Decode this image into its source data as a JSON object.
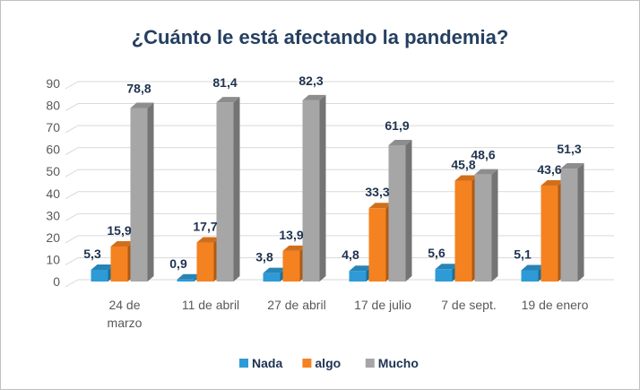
{
  "chart_data": {
    "type": "bar",
    "title": "¿Cuánto le está afectando la pandemia?",
    "xlabel": "",
    "ylabel": "",
    "ylim": [
      0,
      90
    ],
    "yticks": [
      0,
      10,
      20,
      30,
      40,
      50,
      60,
      70,
      80,
      90
    ],
    "grid": true,
    "legend_position": "bottom",
    "categories": [
      "24 de marzo",
      "11 de abril",
      "27 de abril",
      "17 de julio",
      "7 de sept.",
      "19 de enero"
    ],
    "series": [
      {
        "name": "Nada",
        "color": "#2e9bd6",
        "values": [
          5.3,
          0.9,
          3.8,
          4.8,
          5.6,
          5.1
        ],
        "labels": [
          "5,3",
          "0,9",
          "3,8",
          "4,8",
          "5,6",
          "5,1"
        ]
      },
      {
        "name": "algo",
        "color": "#f58220",
        "values": [
          15.9,
          17.7,
          13.9,
          33.3,
          45.8,
          43.6
        ],
        "labels": [
          "15,9",
          "17,7",
          "13,9",
          "33,3",
          "45,8",
          "43,6"
        ]
      },
      {
        "name": "Mucho",
        "color": "#a6a6a6",
        "values": [
          78.8,
          81.4,
          82.3,
          61.9,
          48.6,
          51.3
        ],
        "labels": [
          "78,8",
          "81,4",
          "82,3",
          "61,9",
          "48,6",
          "51,3"
        ]
      }
    ]
  }
}
